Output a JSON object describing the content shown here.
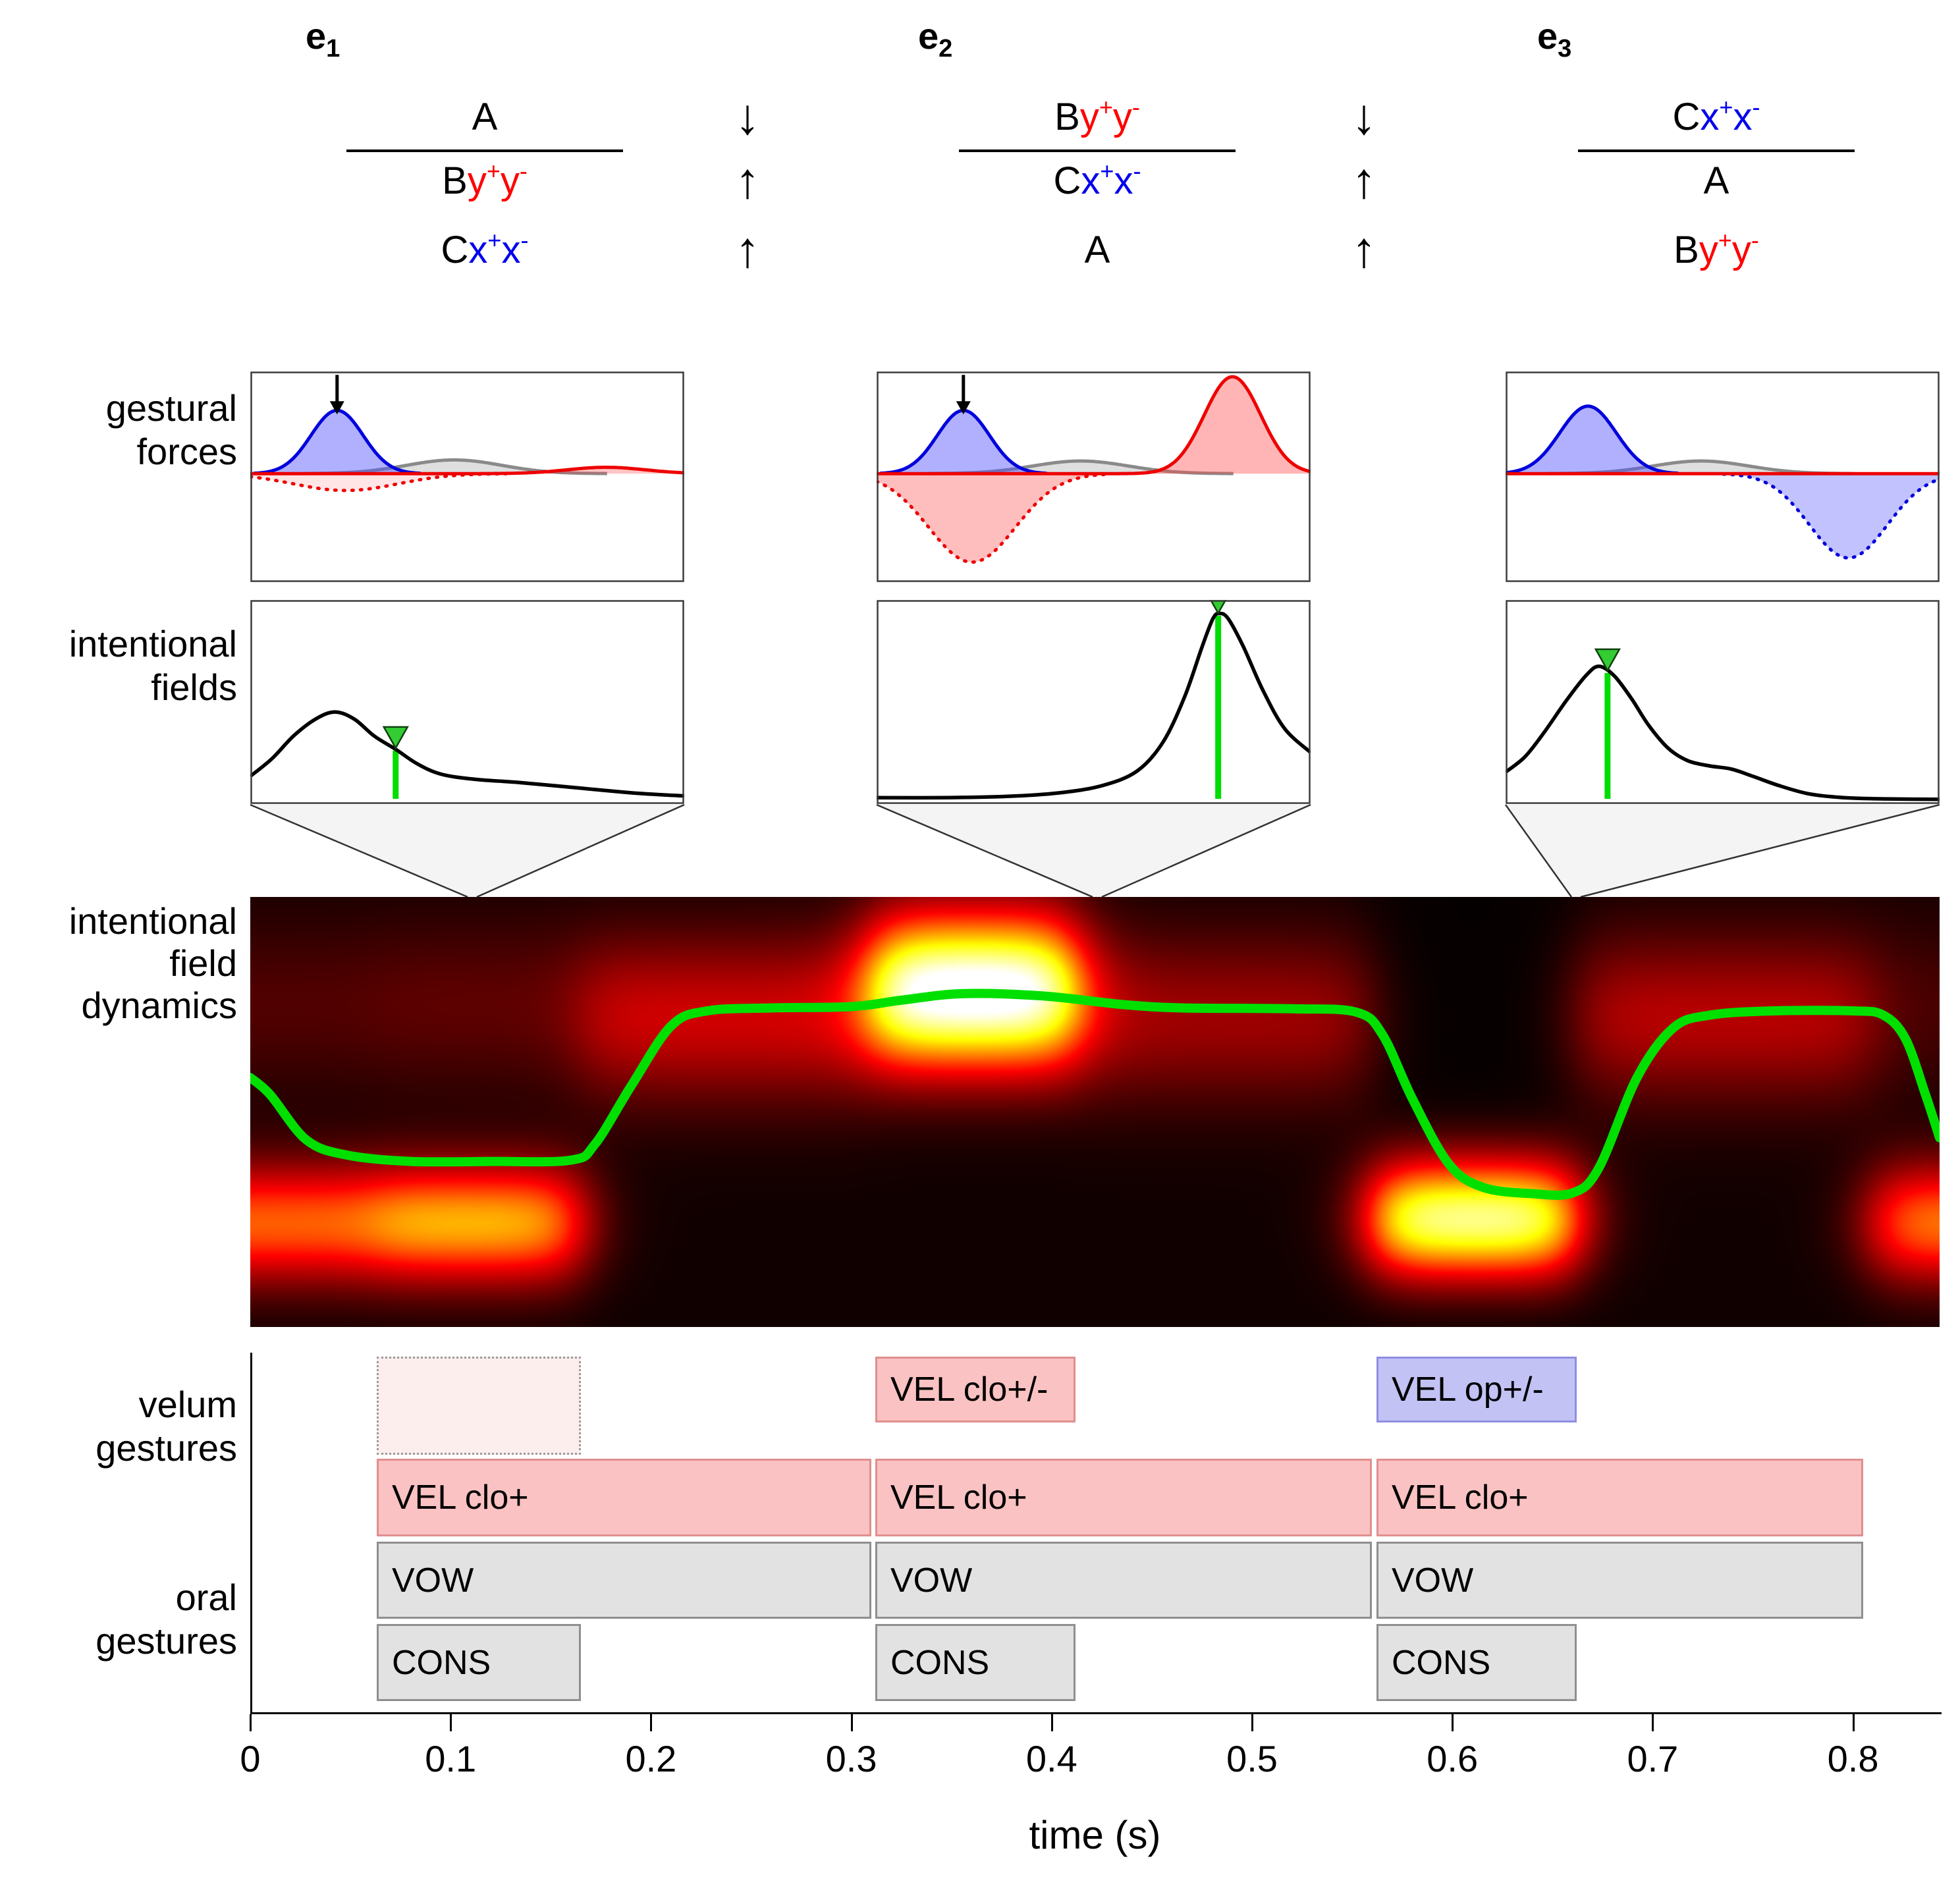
{
  "header": {
    "columns": [
      {
        "label": "e",
        "subscript": "1",
        "numerator": [
          {
            "t": "A",
            "c": "black"
          }
        ],
        "rows": [
          [
            {
              "t": "B",
              "c": "black"
            },
            {
              "t": "y",
              "c": "red"
            },
            {
              "t": "+",
              "c": "red",
              "sup": 1
            },
            {
              "t": "y",
              "c": "red"
            },
            {
              "t": "-",
              "c": "red",
              "sup": 1
            }
          ],
          [
            {
              "t": "C",
              "c": "black"
            },
            {
              "t": "x",
              "c": "blue"
            },
            {
              "t": "+",
              "c": "blue",
              "sup": 1
            },
            {
              "t": "x",
              "c": "blue"
            },
            {
              "t": "-",
              "c": "blue",
              "sup": 1
            }
          ]
        ]
      },
      {
        "label": "e",
        "subscript": "2",
        "numerator": [
          {
            "t": "B",
            "c": "black"
          },
          {
            "t": "y",
            "c": "red"
          },
          {
            "t": "+",
            "c": "red",
            "sup": 1
          },
          {
            "t": "y",
            "c": "red"
          },
          {
            "t": "-",
            "c": "red",
            "sup": 1
          }
        ],
        "rows": [
          [
            {
              "t": "C",
              "c": "black"
            },
            {
              "t": "x",
              "c": "blue"
            },
            {
              "t": "+",
              "c": "blue",
              "sup": 1
            },
            {
              "t": "x",
              "c": "blue"
            },
            {
              "t": "-",
              "c": "blue",
              "sup": 1
            }
          ],
          [
            {
              "t": "A",
              "c": "black"
            }
          ]
        ]
      },
      {
        "label": "e",
        "subscript": "3",
        "numerator": [
          {
            "t": "C",
            "c": "black"
          },
          {
            "t": "x",
            "c": "blue"
          },
          {
            "t": "+",
            "c": "blue",
            "sup": 1
          },
          {
            "t": "x",
            "c": "blue"
          },
          {
            "t": "-",
            "c": "blue",
            "sup": 1
          }
        ],
        "rows": [
          [
            {
              "t": "A",
              "c": "black"
            }
          ],
          [
            {
              "t": "B",
              "c": "black"
            },
            {
              "t": "y",
              "c": "red"
            },
            {
              "t": "+",
              "c": "red",
              "sup": 1
            },
            {
              "t": "y",
              "c": "red"
            },
            {
              "t": "-",
              "c": "red",
              "sup": 1
            }
          ]
        ]
      }
    ],
    "arrow_stacks": [
      [
        "↓",
        "↑",
        "↑"
      ],
      [
        "↓",
        "↑",
        "↑"
      ]
    ]
  },
  "row_labels": {
    "gestural_forces": [
      "gestural",
      "forces"
    ],
    "intentional_fields": [
      "intentional",
      "fields"
    ],
    "intentional_field_dynamics": [
      "intentional",
      "field",
      "dynamics"
    ],
    "velum_gestures": [
      "velum",
      "gestures"
    ],
    "oral_gestures": [
      "oral",
      "gestures"
    ]
  },
  "axis": {
    "tick_values": [
      0,
      0.1,
      0.2,
      0.3,
      0.4,
      0.5,
      0.6,
      0.7,
      0.8
    ],
    "tick_labels": [
      "0",
      "0.1",
      "0.2",
      "0.3",
      "0.4",
      "0.5",
      "0.6",
      "0.7",
      "0.8"
    ],
    "xlabel": "time (s)",
    "t_max": 0.843
  },
  "colors": {
    "red": "#ff0000",
    "blue": "#0000ee",
    "marker_green": "#00dd00",
    "trajectory_green": "#00e000"
  },
  "chart_data": [
    {
      "id": "gestural_forces",
      "type": "line",
      "baseline_frac": 0.485,
      "panels": [
        {
          "event": "e1",
          "arrow_at": 0.2,
          "curves": [
            {
              "name": "neutral-gray",
              "color": "#8a8a8a",
              "fill": "rgba(140,140,140,0.28)",
              "style": "solid",
              "center": 0.47,
              "sigma": 0.11,
              "amp": 0.065
            },
            {
              "name": "red-suppression",
              "color": "#ee0000",
              "fill": "rgba(255,0,0,0.10)",
              "style": "dotted",
              "center": 0.22,
              "sigma": 0.12,
              "amp": -0.08
            },
            {
              "name": "blue-activation",
              "color": "#0000dd",
              "fill": "rgba(80,80,255,0.45)",
              "style": "solid",
              "center": 0.2,
              "sigma": 0.06,
              "amp": 0.3
            },
            {
              "name": "red-activation",
              "color": "#ee0000",
              "fill": "rgba(255,60,60,0.30)",
              "style": "solid",
              "center": 0.82,
              "sigma": 0.09,
              "amp": 0.03,
              "full_width": true
            }
          ]
        },
        {
          "event": "e2",
          "arrow_at": 0.2,
          "curves": [
            {
              "name": "neutral-gray",
              "color": "#8a8a8a",
              "fill": "rgba(140,140,140,0.28)",
              "style": "solid",
              "center": 0.47,
              "sigma": 0.11,
              "amp": 0.06
            },
            {
              "name": "red-suppression",
              "color": "#ee0000",
              "fill": "rgba(255,70,70,0.35)",
              "style": "dotted",
              "center": 0.22,
              "sigma": 0.1,
              "amp": -0.42
            },
            {
              "name": "blue-activation",
              "color": "#0000dd",
              "fill": "rgba(80,80,255,0.45)",
              "style": "solid",
              "center": 0.2,
              "sigma": 0.06,
              "amp": 0.3
            },
            {
              "name": "red-activation",
              "color": "#ee0000",
              "fill": "rgba(255,70,70,0.40)",
              "style": "solid",
              "center": 0.82,
              "sigma": 0.065,
              "amp": 0.46,
              "full_width": true
            }
          ]
        },
        {
          "event": "e3",
          "arrow_at": null,
          "curves": [
            {
              "name": "neutral-gray",
              "color": "#8a8a8a",
              "fill": "rgba(140,140,140,0.28)",
              "style": "solid",
              "center": 0.45,
              "sigma": 0.11,
              "amp": 0.06
            },
            {
              "name": "blue-suppression",
              "color": "#0000dd",
              "fill": "rgba(80,80,255,0.35)",
              "style": "dotted",
              "center": 0.79,
              "sigma": 0.09,
              "amp": -0.4
            },
            {
              "name": "blue-activation",
              "color": "#0000dd",
              "fill": "rgba(80,80,255,0.45)",
              "style": "solid",
              "center": 0.19,
              "sigma": 0.065,
              "amp": 0.32
            },
            {
              "name": "red-activation",
              "color": "#ee0000",
              "fill": "none",
              "style": "solid",
              "center": 0.5,
              "sigma": 0.1,
              "amp": 0.0,
              "full_width": true
            }
          ]
        }
      ]
    },
    {
      "id": "intentional_fields",
      "type": "line",
      "panels": [
        {
          "event": "e1",
          "marker_t": 0.335,
          "curve": [
            [
              0,
              0.115
            ],
            [
              0.05,
              0.2
            ],
            [
              0.1,
              0.31
            ],
            [
              0.15,
              0.39
            ],
            [
              0.195,
              0.425
            ],
            [
              0.24,
              0.39
            ],
            [
              0.285,
              0.31
            ],
            [
              0.335,
              0.245
            ],
            [
              0.385,
              0.175
            ],
            [
              0.44,
              0.125
            ],
            [
              0.52,
              0.1
            ],
            [
              0.62,
              0.085
            ],
            [
              0.75,
              0.06
            ],
            [
              0.88,
              0.035
            ],
            [
              1,
              0.02
            ]
          ]
        },
        {
          "event": "e2",
          "marker_t": 0.787,
          "curve": [
            [
              0,
              0.012
            ],
            [
              0.15,
              0.012
            ],
            [
              0.3,
              0.018
            ],
            [
              0.42,
              0.035
            ],
            [
              0.52,
              0.07
            ],
            [
              0.6,
              0.14
            ],
            [
              0.66,
              0.28
            ],
            [
              0.71,
              0.5
            ],
            [
              0.75,
              0.74
            ],
            [
              0.775,
              0.875
            ],
            [
              0.79,
              0.9
            ],
            [
              0.81,
              0.875
            ],
            [
              0.845,
              0.74
            ],
            [
              0.89,
              0.53
            ],
            [
              0.94,
              0.345
            ],
            [
              1,
              0.23
            ]
          ]
        },
        {
          "event": "e3",
          "marker_t": 0.235,
          "curve": [
            [
              0,
              0.135
            ],
            [
              0.045,
              0.21
            ],
            [
              0.09,
              0.33
            ],
            [
              0.14,
              0.48
            ],
            [
              0.185,
              0.6
            ],
            [
              0.215,
              0.645
            ],
            [
              0.25,
              0.6
            ],
            [
              0.29,
              0.49
            ],
            [
              0.33,
              0.36
            ],
            [
              0.375,
              0.25
            ],
            [
              0.42,
              0.19
            ],
            [
              0.47,
              0.165
            ],
            [
              0.52,
              0.15
            ],
            [
              0.57,
              0.115
            ],
            [
              0.63,
              0.07
            ],
            [
              0.7,
              0.03
            ],
            [
              0.78,
              0.012
            ],
            [
              0.88,
              0.006
            ],
            [
              1,
              0.004
            ]
          ]
        }
      ]
    },
    {
      "id": "intentional_field_dynamics",
      "type": "heatmap",
      "t_max": 0.843,
      "base": 0.025,
      "columns": [
        {
          "t0": 0.0,
          "t1": 0.063,
          "blobs": [
            {
              "y": 0.76,
              "sig": 0.1,
              "amp": 0.5
            },
            {
              "y": 0.25,
              "sig": 0.15,
              "amp": 0.1
            }
          ]
        },
        {
          "t0": 0.063,
          "t1": 0.165,
          "blobs": [
            {
              "y": 0.76,
              "sig": 0.1,
              "amp": 0.62
            },
            {
              "y": 0.25,
              "sig": 0.15,
              "amp": 0.12
            }
          ]
        },
        {
          "t0": 0.165,
          "t1": 0.31,
          "blobs": [
            {
              "y": 0.28,
              "sig": 0.14,
              "amp": 0.3
            }
          ]
        },
        {
          "t0": 0.31,
          "t1": 0.412,
          "blobs": [
            {
              "y": 0.22,
              "sig": 0.13,
              "amp": 1.05
            }
          ]
        },
        {
          "t0": 0.412,
          "t1": 0.56,
          "blobs": [
            {
              "y": 0.28,
              "sig": 0.14,
              "amp": 0.22
            }
          ]
        },
        {
          "t0": 0.56,
          "t1": 0.662,
          "base": 0.008,
          "blobs": [
            {
              "y": 0.75,
              "sig": 0.1,
              "amp": 0.88
            }
          ]
        },
        {
          "t0": 0.662,
          "t1": 0.81,
          "blobs": [
            {
              "y": 0.28,
              "sig": 0.14,
              "amp": 0.26
            }
          ]
        },
        {
          "t0": 0.81,
          "t1": 0.843,
          "blobs": [
            {
              "y": 0.76,
              "sig": 0.1,
              "amp": 0.55
            },
            {
              "y": 0.25,
              "sig": 0.15,
              "amp": 0.08
            }
          ]
        }
      ],
      "trajectory": [
        [
          0.0,
          0.42
        ],
        [
          0.01,
          0.46
        ],
        [
          0.028,
          0.565
        ],
        [
          0.048,
          0.6
        ],
        [
          0.08,
          0.615
        ],
        [
          0.12,
          0.615
        ],
        [
          0.16,
          0.612
        ],
        [
          0.172,
          0.575
        ],
        [
          0.19,
          0.44
        ],
        [
          0.21,
          0.3
        ],
        [
          0.228,
          0.265
        ],
        [
          0.26,
          0.258
        ],
        [
          0.3,
          0.255
        ],
        [
          0.325,
          0.24
        ],
        [
          0.355,
          0.225
        ],
        [
          0.395,
          0.23
        ],
        [
          0.435,
          0.25
        ],
        [
          0.465,
          0.258
        ],
        [
          0.52,
          0.26
        ],
        [
          0.552,
          0.268
        ],
        [
          0.565,
          0.32
        ],
        [
          0.58,
          0.47
        ],
        [
          0.598,
          0.62
        ],
        [
          0.615,
          0.675
        ],
        [
          0.64,
          0.69
        ],
        [
          0.66,
          0.688
        ],
        [
          0.673,
          0.63
        ],
        [
          0.692,
          0.42
        ],
        [
          0.71,
          0.305
        ],
        [
          0.728,
          0.275
        ],
        [
          0.76,
          0.265
        ],
        [
          0.8,
          0.265
        ],
        [
          0.815,
          0.275
        ],
        [
          0.826,
          0.33
        ],
        [
          0.836,
          0.46
        ],
        [
          0.843,
          0.56
        ]
      ],
      "trajectory_color": "#00e000"
    },
    {
      "id": "gesture_score",
      "type": "gantt",
      "styles": {
        "pink": {
          "fill": "#fac2c2",
          "border": "#e08f8f"
        },
        "lavender": {
          "fill": "#c2c2f5",
          "border": "#8f8fe0"
        },
        "gray": {
          "fill": "#e2e2e2",
          "border": "#8f8f8f"
        },
        "faint": {
          "fill": "#fdeeee",
          "border": "#9a9a9a",
          "dotted": true
        }
      },
      "boxes": [
        {
          "row": "velum-faint",
          "label": "",
          "style": "faint",
          "start": 0.063,
          "end": 0.165
        },
        {
          "row": "velum-top",
          "label": "VEL clo+/-",
          "style": "pink",
          "start": 0.312,
          "end": 0.412
        },
        {
          "row": "velum-top",
          "label": "VEL op+/-",
          "style": "lavender",
          "start": 0.562,
          "end": 0.662
        },
        {
          "row": "velum-main",
          "label": "VEL clo+",
          "style": "pink",
          "start": 0.063,
          "end": 0.31
        },
        {
          "row": "velum-main",
          "label": "VEL clo+",
          "style": "pink",
          "start": 0.312,
          "end": 0.56
        },
        {
          "row": "velum-main",
          "label": "VEL clo+",
          "style": "pink",
          "start": 0.562,
          "end": 0.805
        },
        {
          "row": "vow",
          "label": "VOW",
          "style": "gray",
          "start": 0.063,
          "end": 0.31
        },
        {
          "row": "vow",
          "label": "VOW",
          "style": "gray",
          "start": 0.312,
          "end": 0.56
        },
        {
          "row": "vow",
          "label": "VOW",
          "style": "gray",
          "start": 0.562,
          "end": 0.805
        },
        {
          "row": "cons",
          "label": "CONS",
          "style": "gray",
          "start": 0.063,
          "end": 0.165
        },
        {
          "row": "cons",
          "label": "CONS",
          "style": "gray",
          "start": 0.312,
          "end": 0.412
        },
        {
          "row": "cons",
          "label": "CONS",
          "style": "gray",
          "start": 0.562,
          "end": 0.662
        }
      ]
    }
  ]
}
